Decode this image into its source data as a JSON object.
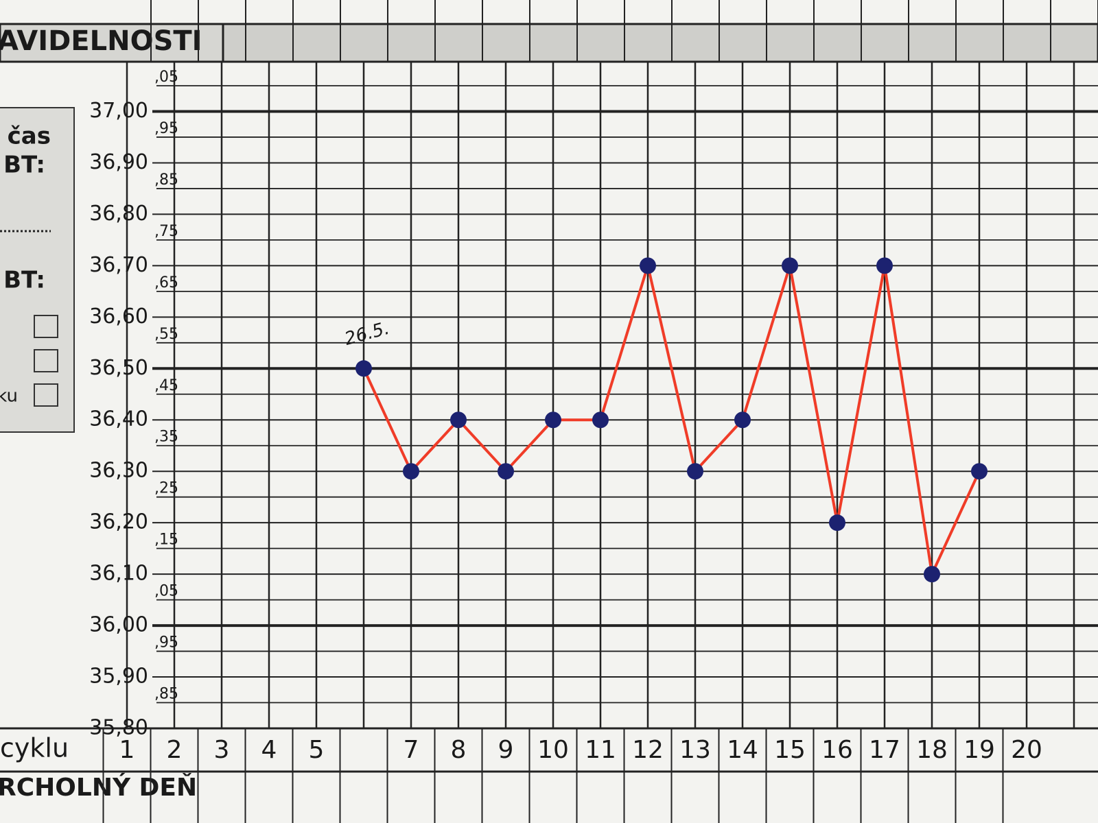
{
  "chart_data": {
    "type": "line",
    "header": "AVIDELNOSTI",
    "side_labels": [
      "čas",
      "BT:",
      "BT:",
      "ku"
    ],
    "row_labels": [
      "cyklu",
      "RCHOLNÝ DEŇ"
    ],
    "annotation": "26.5.",
    "categories": [
      "1",
      "2",
      "3",
      "4",
      "5",
      null,
      "7",
      "8",
      "9",
      "10",
      "11",
      "12",
      "13",
      "14",
      "15",
      "16",
      "17",
      "18",
      "19",
      "20"
    ],
    "series": [
      {
        "color": "#f03c28",
        "marker_color": "#1c2270",
        "values": [
          null,
          null,
          null,
          null,
          null,
          36.5,
          36.3,
          36.4,
          36.3,
          36.4,
          36.4,
          36.7,
          36.3,
          36.4,
          36.7,
          36.2,
          36.7,
          36.1,
          36.3,
          null
        ]
      }
    ],
    "ylim": [
      35.8,
      37.05
    ],
    "yticks": [
      {
        "value": 35.8,
        "label": "35,80"
      },
      {
        "value": 35.9,
        "label": "35,90"
      },
      {
        "value": 36.0,
        "label": "36,00"
      },
      {
        "value": 36.1,
        "label": "36,10"
      },
      {
        "value": 36.2,
        "label": "36,20"
      },
      {
        "value": 36.3,
        "label": "36,30"
      },
      {
        "value": 36.4,
        "label": "36,40"
      },
      {
        "value": 36.5,
        "label": "36,50"
      },
      {
        "value": 36.6,
        "label": "36,60"
      },
      {
        "value": 36.7,
        "label": "36,70"
      },
      {
        "value": 36.8,
        "label": "36,80"
      },
      {
        "value": 36.9,
        "label": "36,90"
      },
      {
        "value": 37.0,
        "label": "37,00"
      }
    ],
    "minor_yticks": [
      {
        "value": 35.85,
        "label": ",85"
      },
      {
        "value": 35.95,
        "label": ",95"
      },
      {
        "value": 36.05,
        "label": ",05"
      },
      {
        "value": 36.15,
        "label": ",15"
      },
      {
        "value": 36.25,
        "label": ",25"
      },
      {
        "value": 36.35,
        "label": ",35"
      },
      {
        "value": 36.45,
        "label": ",45"
      },
      {
        "value": 36.55,
        "label": ",55"
      },
      {
        "value": 36.65,
        "label": ",65"
      },
      {
        "value": 36.75,
        "label": ",75"
      },
      {
        "value": 36.85,
        "label": ",85"
      },
      {
        "value": 36.95,
        "label": ",95"
      },
      {
        "value": 37.05,
        "label": ",05"
      }
    ],
    "grid": true
  }
}
